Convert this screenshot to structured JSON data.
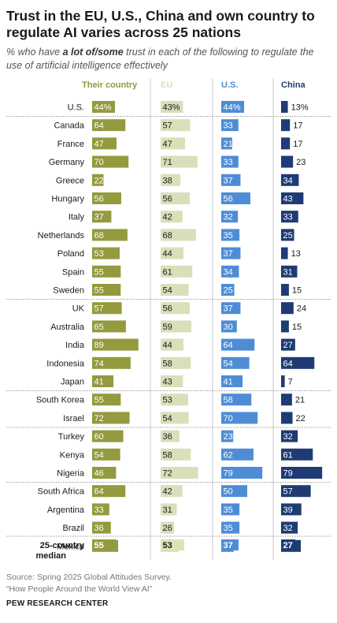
{
  "title": "Trust in the EU, U.S., China and own country to regulate AI varies across 25 nations",
  "subtitle": {
    "prefix": "% who have ",
    "emphasis": "a lot of/some",
    "suffix": " trust in each of the following to regulate the use of artificial intelligence effectively"
  },
  "colors": {
    "own_country": "#949a3d",
    "own_country_light": "#dfe3b4",
    "eu": "#d9dfb9",
    "us": "#4e8dd6",
    "china": "#1e3c73",
    "divider": "#c9c9c9",
    "separator": "#7a7a7a"
  },
  "chart_data": {
    "type": "bar",
    "layout": "small-multiple horizontal bars",
    "columns": [
      "Their country",
      "EU",
      "U.S.",
      "China"
    ],
    "categories": [
      "U.S.",
      "Canada",
      "France",
      "Germany",
      "Greece",
      "Hungary",
      "Italy",
      "Netherlands",
      "Poland",
      "Spain",
      "Sweden",
      "UK",
      "Australia",
      "India",
      "Indonesia",
      "Japan",
      "South Korea",
      "Israel",
      "Turkey",
      "Kenya",
      "Nigeria",
      "South Africa",
      "Argentina",
      "Brazil",
      "Mexico"
    ],
    "label_suffix_rows": [
      "U.S."
    ],
    "series": [
      {
        "name": "Their country",
        "values": [
          44,
          64,
          47,
          70,
          22,
          56,
          37,
          68,
          53,
          55,
          55,
          57,
          65,
          89,
          74,
          41,
          55,
          72,
          60,
          54,
          46,
          64,
          33,
          36,
          50
        ]
      },
      {
        "name": "EU",
        "values": [
          43,
          57,
          47,
          71,
          38,
          56,
          42,
          68,
          44,
          61,
          54,
          56,
          59,
          44,
          58,
          43,
          53,
          54,
          36,
          58,
          72,
          42,
          31,
          26,
          35
        ]
      },
      {
        "name": "U.S.",
        "values": [
          44,
          33,
          21,
          33,
          37,
          56,
          32,
          35,
          37,
          34,
          25,
          37,
          30,
          64,
          54,
          41,
          58,
          70,
          23,
          62,
          79,
          50,
          35,
          35,
          24
        ]
      },
      {
        "name": "China",
        "values": [
          13,
          17,
          17,
          23,
          34,
          43,
          33,
          25,
          13,
          31,
          15,
          24,
          15,
          27,
          64,
          7,
          21,
          22,
          32,
          61,
          79,
          57,
          39,
          32,
          38
        ]
      }
    ],
    "median": {
      "label_line1": "25-country",
      "label_line2": "median",
      "values": [
        55,
        53,
        37,
        27
      ]
    }
  },
  "footer": {
    "source": "Source: Spring 2025 Global Attitudes Survey.",
    "report": "“How People Around the World View AI”",
    "brand": "PEW RESEARCH CENTER"
  }
}
